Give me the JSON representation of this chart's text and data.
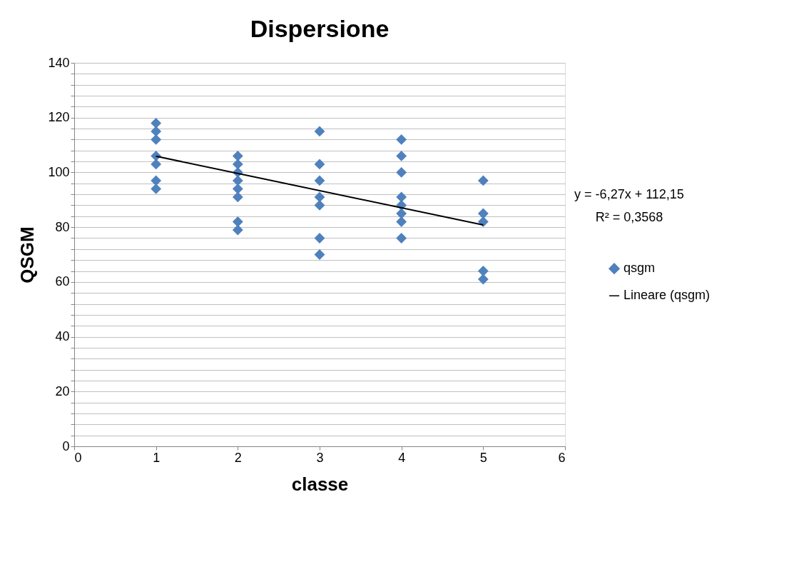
{
  "chart_data": {
    "type": "scatter",
    "title": "Dispersione",
    "xlabel": "classe",
    "ylabel": "QSGM",
    "xlim": [
      0,
      6
    ],
    "xticks": [
      0,
      1,
      2,
      3,
      4,
      5,
      6
    ],
    "ylim": [
      0,
      140
    ],
    "yticks": [
      0,
      {
        "value": 4,
        "label": null
      },
      {
        "value": 8,
        "label": null
      },
      {
        "value": 12,
        "label": null
      },
      {
        "value": 16,
        "label": null
      },
      20,
      {
        "value": 24,
        "label": null
      },
      {
        "value": 28,
        "label": null
      },
      {
        "value": 32,
        "label": null
      },
      {
        "value": 36,
        "label": null
      },
      40,
      {
        "value": 44,
        "label": null
      },
      {
        "value": 48,
        "label": null
      },
      {
        "value": 52,
        "label": null
      },
      {
        "value": 56,
        "label": null
      },
      60,
      {
        "value": 64,
        "label": null
      },
      {
        "value": 68,
        "label": null
      },
      {
        "value": 72,
        "label": null
      },
      {
        "value": 76,
        "label": null
      },
      80,
      {
        "value": 84,
        "label": null
      },
      {
        "value": 88,
        "label": null
      },
      {
        "value": 92,
        "label": null
      },
      {
        "value": 96,
        "label": null
      },
      100,
      {
        "value": 104,
        "label": null
      },
      {
        "value": 108,
        "label": null
      },
      {
        "value": 112,
        "label": null
      },
      {
        "value": 116,
        "label": null
      },
      120,
      {
        "value": 124,
        "label": null
      },
      {
        "value": 128,
        "label": null
      },
      {
        "value": 132,
        "label": null
      },
      {
        "value": 136,
        "label": null
      },
      140
    ],
    "grid": "y",
    "legend": "right",
    "series": [
      {
        "name": "qsgm",
        "color": "#4f81bd",
        "marker": "diamond",
        "x": [
          1,
          1,
          1,
          1,
          1,
          1,
          1,
          2,
          2,
          2,
          2,
          2,
          2,
          2,
          2,
          3,
          3,
          3,
          3,
          3,
          3,
          3,
          4,
          4,
          4,
          4,
          4,
          4,
          4,
          4,
          5,
          5,
          5,
          5,
          5
        ],
        "values": [
          118,
          115,
          112,
          106,
          103,
          97,
          94,
          106,
          103,
          100,
          97,
          94,
          91,
          82,
          79,
          115,
          103,
          97,
          91,
          88,
          76,
          70,
          112,
          106,
          100,
          91,
          88,
          85,
          82,
          76,
          97,
          85,
          82,
          64,
          61
        ]
      },
      {
        "name": "Lineare (qsgm)",
        "type": "line",
        "color": "#000000",
        "x": [
          1,
          5
        ],
        "values": [
          105.9,
          80.8
        ]
      }
    ],
    "annotations": [
      "y = -6,27x + 112,15",
      "R² = 0,3568"
    ]
  }
}
